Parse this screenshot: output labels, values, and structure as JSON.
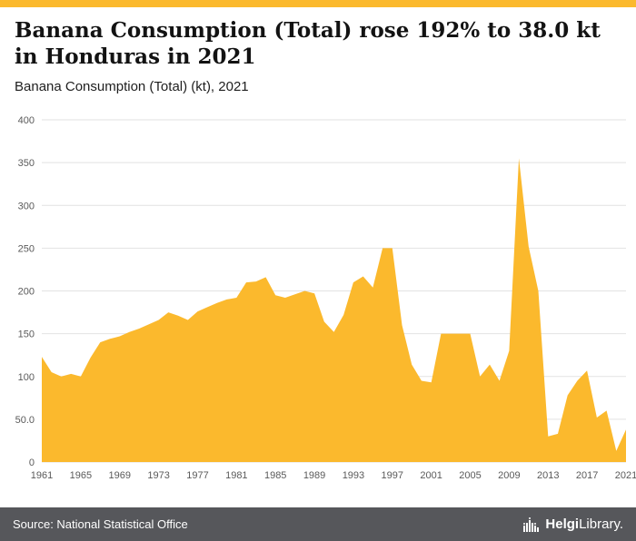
{
  "accent_color": "#fbb92d",
  "header": {
    "title": "Banana Consumption (Total) rose 192% to 38.0 kt in Honduras in 2021",
    "subtitle": "Banana Consumption (Total) (kt), 2021"
  },
  "chart_data": {
    "type": "area",
    "title": "Banana Consumption (Total) (kt), 2021",
    "xlabel": "",
    "ylabel": "",
    "ylim": [
      0,
      400
    ],
    "grid": true,
    "legend_position": "none",
    "fill_color": "#fbb92d",
    "x": [
      1961,
      1962,
      1963,
      1964,
      1965,
      1966,
      1967,
      1968,
      1969,
      1970,
      1971,
      1972,
      1973,
      1974,
      1975,
      1976,
      1977,
      1978,
      1979,
      1980,
      1981,
      1982,
      1983,
      1984,
      1985,
      1986,
      1987,
      1988,
      1989,
      1990,
      1991,
      1992,
      1993,
      1994,
      1995,
      1996,
      1997,
      1998,
      1999,
      2000,
      2001,
      2002,
      2003,
      2004,
      2005,
      2006,
      2007,
      2008,
      2009,
      2010,
      2011,
      2012,
      2013,
      2014,
      2015,
      2016,
      2017,
      2018,
      2019,
      2020,
      2021
    ],
    "values": [
      123,
      105,
      100,
      103,
      100,
      122,
      140,
      144,
      147,
      152,
      156,
      161,
      166,
      175,
      171,
      166,
      176,
      181,
      186,
      190,
      192,
      210,
      211,
      216,
      195,
      192,
      196,
      200,
      197,
      164,
      152,
      172,
      210,
      217,
      204,
      250,
      250,
      160,
      114,
      95,
      93,
      150,
      150,
      150,
      150,
      100,
      114,
      95,
      130,
      355,
      252,
      200,
      30,
      33,
      78,
      95,
      107,
      52,
      60,
      13,
      38
    ],
    "y_ticks": [
      0,
      50,
      100,
      150,
      200,
      250,
      300,
      350,
      400
    ],
    "y_tick_labels": [
      "0",
      "50.0",
      "100",
      "150",
      "200",
      "250",
      "300",
      "350",
      "400"
    ],
    "x_tick_labels": [
      "1961",
      "1965",
      "1969",
      "1973",
      "1977",
      "1981",
      "1985",
      "1989",
      "1993",
      "1997",
      "2001",
      "2005",
      "2009",
      "2013",
      "2017",
      "2021"
    ]
  },
  "footer": {
    "source": "Source: National Statistical Office",
    "logo_helgi": "Helgi",
    "logo_library": "Library."
  }
}
